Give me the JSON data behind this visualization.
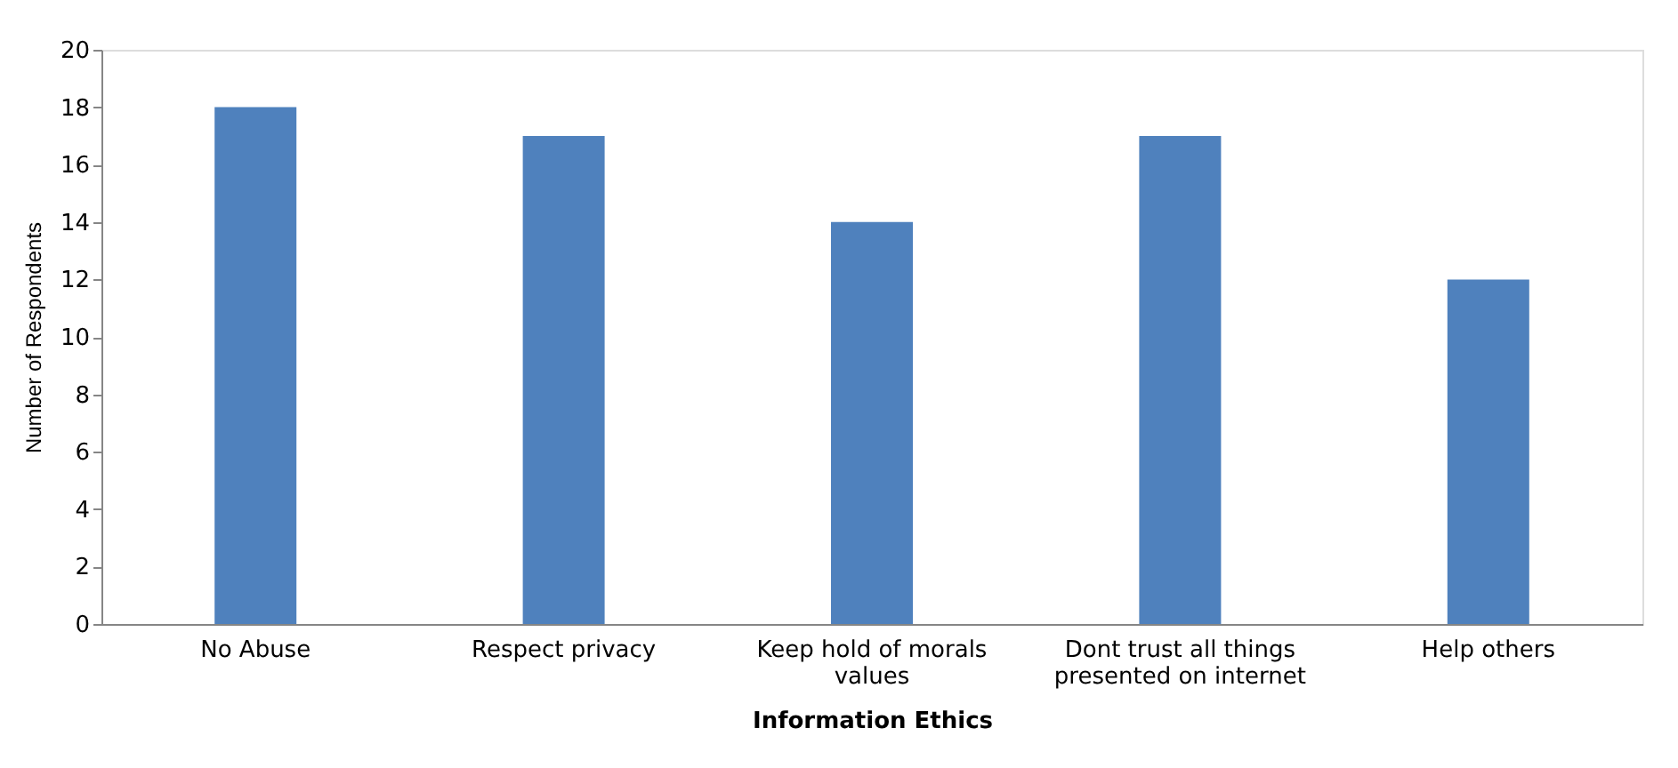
{
  "chart_data": {
    "type": "bar",
    "xlabel": "Information Ethics",
    "ylabel": "Number of Respondents",
    "categories": [
      "No Abuse",
      "Respect privacy",
      "Keep hold of morals values",
      "Dont trust all things presented on internet",
      "Help others"
    ],
    "values": [
      18,
      17,
      14,
      17,
      12
    ],
    "color": "#4f81bd",
    "ylim": [
      0,
      20
    ],
    "yticks": [
      0,
      2,
      4,
      6,
      8,
      10,
      12,
      14,
      16,
      18,
      20
    ],
    "grid": false
  }
}
